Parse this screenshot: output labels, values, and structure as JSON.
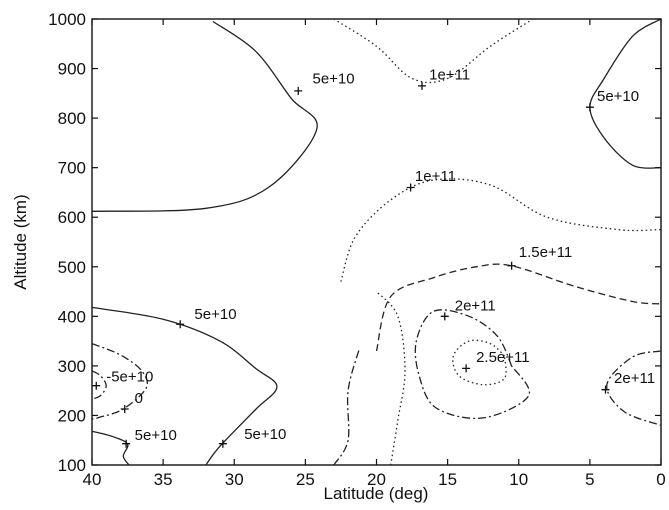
{
  "chart_data": {
    "type": "contour",
    "title": "",
    "xlabel": "Latitude (deg)",
    "ylabel": "Altitude (km)",
    "xlim": [
      40,
      0
    ],
    "ylim": [
      100,
      1000
    ],
    "x_ticks": [
      40,
      35,
      30,
      25,
      20,
      15,
      10,
      5,
      0
    ],
    "y_ticks": [
      100,
      200,
      300,
      400,
      500,
      600,
      700,
      800,
      900,
      1000
    ],
    "grid": false,
    "contours": [
      {
        "level_label": "5e+10",
        "dash": "solid",
        "points": [
          [
            40,
            612
          ],
          [
            32,
            618
          ],
          [
            27.5,
            662
          ],
          [
            24.2,
            778
          ],
          [
            26,
            840
          ],
          [
            28.5,
            935
          ],
          [
            31.5,
            995
          ]
        ]
      },
      {
        "level_label": "5e+10",
        "dash": "solid",
        "points": [
          [
            0,
            700
          ],
          [
            2,
            705
          ],
          [
            4,
            760
          ],
          [
            5,
            822
          ],
          [
            4,
            880
          ],
          [
            2,
            965
          ],
          [
            0,
            1000
          ]
        ]
      },
      {
        "level_label": "5e+10",
        "dash": "solid",
        "points": [
          [
            40,
            418
          ],
          [
            35,
            394
          ],
          [
            31,
            350
          ],
          [
            28.5,
            295
          ],
          [
            27,
            258
          ],
          [
            28.5,
            212
          ],
          [
            31,
            138
          ],
          [
            32,
            100
          ]
        ]
      },
      {
        "level_label": "5e+10",
        "dash": "solid",
        "points": [
          [
            40,
            168
          ],
          [
            38.5,
            157
          ],
          [
            37.5,
            142
          ],
          [
            37.8,
            118
          ],
          [
            37.4,
            100
          ]
        ]
      },
      {
        "level_label": "0",
        "dash": "dashdot",
        "points": [
          [
            40,
            345
          ],
          [
            38,
            322
          ],
          [
            36.5,
            290
          ],
          [
            36.2,
            255
          ],
          [
            37.8,
            213
          ],
          [
            39.5,
            196
          ],
          [
            40,
            193
          ]
        ]
      },
      {
        "level_label": "-5e+10",
        "dash": "dashdot",
        "points": [
          [
            40,
            290
          ],
          [
            39.4,
            280
          ],
          [
            39,
            260
          ],
          [
            39.4,
            240
          ],
          [
            40,
            233
          ]
        ]
      },
      {
        "level_label": "1e+11",
        "dash": "dotted",
        "points": [
          [
            23,
            1000
          ],
          [
            20,
            945
          ],
          [
            17.5,
            880
          ],
          [
            15,
            880
          ],
          [
            12,
            945
          ],
          [
            9,
            1000
          ]
        ]
      },
      {
        "level_label": "1e+11",
        "dash": "dotted",
        "points": [
          [
            22.5,
            470
          ],
          [
            21.5,
            560
          ],
          [
            19,
            635
          ],
          [
            16,
            675
          ],
          [
            12,
            665
          ],
          [
            8,
            600
          ],
          [
            3,
            575
          ],
          [
            0,
            575
          ]
        ]
      },
      {
        "level_label": "1.5e+11",
        "dash": "dashed",
        "points": [
          [
            20,
            330
          ],
          [
            19,
            440
          ],
          [
            16,
            478
          ],
          [
            13,
            500
          ],
          [
            10.5,
            502
          ],
          [
            6,
            460
          ],
          [
            2,
            430
          ],
          [
            0,
            425
          ]
        ]
      },
      {
        "level_label": "2e+11",
        "dash": "dashdot",
        "points": [
          [
            10.5,
            300
          ],
          [
            11.5,
            360
          ],
          [
            13.5,
            400
          ],
          [
            16,
            410
          ],
          [
            17.2,
            350
          ],
          [
            17,
            280
          ],
          [
            15.8,
            215
          ],
          [
            12.5,
            195
          ],
          [
            9.3,
            240
          ],
          [
            10.5,
            300
          ]
        ]
      },
      {
        "level_label": "2.5e+11",
        "dash": "dotted",
        "points": [
          [
            11,
            320
          ],
          [
            12,
            345
          ],
          [
            13.5,
            350
          ],
          [
            14.6,
            320
          ],
          [
            14.2,
            280
          ],
          [
            12.5,
            262
          ],
          [
            11,
            275
          ],
          [
            11,
            320
          ]
        ]
      },
      {
        "level_label": "2e+11",
        "dash": "dashdot",
        "points": [
          [
            0,
            330
          ],
          [
            2,
            318
          ],
          [
            3.8,
            262
          ],
          [
            2.6,
            208
          ],
          [
            0,
            180
          ]
        ]
      },
      {
        "level_label": "",
        "dash": "dotted",
        "points": [
          [
            19,
            100
          ],
          [
            18.5,
            190
          ],
          [
            18,
            290
          ],
          [
            18.5,
            400
          ],
          [
            20,
            450
          ]
        ]
      },
      {
        "level_label": "",
        "dash": "dashdot",
        "points": [
          [
            23,
            100
          ],
          [
            22,
            150
          ],
          [
            22,
            250
          ],
          [
            21.2,
            335
          ]
        ]
      }
    ],
    "labels": [
      {
        "text": "5e+10",
        "x": 24.5,
        "y": 870
      },
      {
        "text": "1e+11",
        "x": 16.3,
        "y": 878
      },
      {
        "text": "5e+10",
        "x": 4.5,
        "y": 835
      },
      {
        "text": "1e+11",
        "x": 17.3,
        "y": 673
      },
      {
        "text": "1.5e+11",
        "x": 10,
        "y": 520
      },
      {
        "text": "2e+11",
        "x": 14.5,
        "y": 412
      },
      {
        "text": "2.5e+11",
        "x": 13,
        "y": 308
      },
      {
        "text": "2e+11",
        "x": 3.3,
        "y": 265
      },
      {
        "text": "5e+10",
        "x": 32.8,
        "y": 395
      },
      {
        "text": "-5e+10",
        "x": 39,
        "y": 268
      },
      {
        "text": "0",
        "x": 37,
        "y": 225
      },
      {
        "text": "5e+10",
        "x": 37,
        "y": 150
      },
      {
        "text": "5e+10",
        "x": 29.3,
        "y": 152
      }
    ],
    "markers": [
      [
        25.5,
        855
      ],
      [
        16.8,
        865
      ],
      [
        5,
        822
      ],
      [
        17.6,
        660
      ],
      [
        10.5,
        502
      ],
      [
        15.2,
        400
      ],
      [
        13.7,
        295
      ],
      [
        3.9,
        252
      ],
      [
        33.8,
        384
      ],
      [
        39.7,
        260
      ],
      [
        37.7,
        213
      ],
      [
        37.6,
        143
      ],
      [
        30.8,
        143
      ]
    ]
  }
}
